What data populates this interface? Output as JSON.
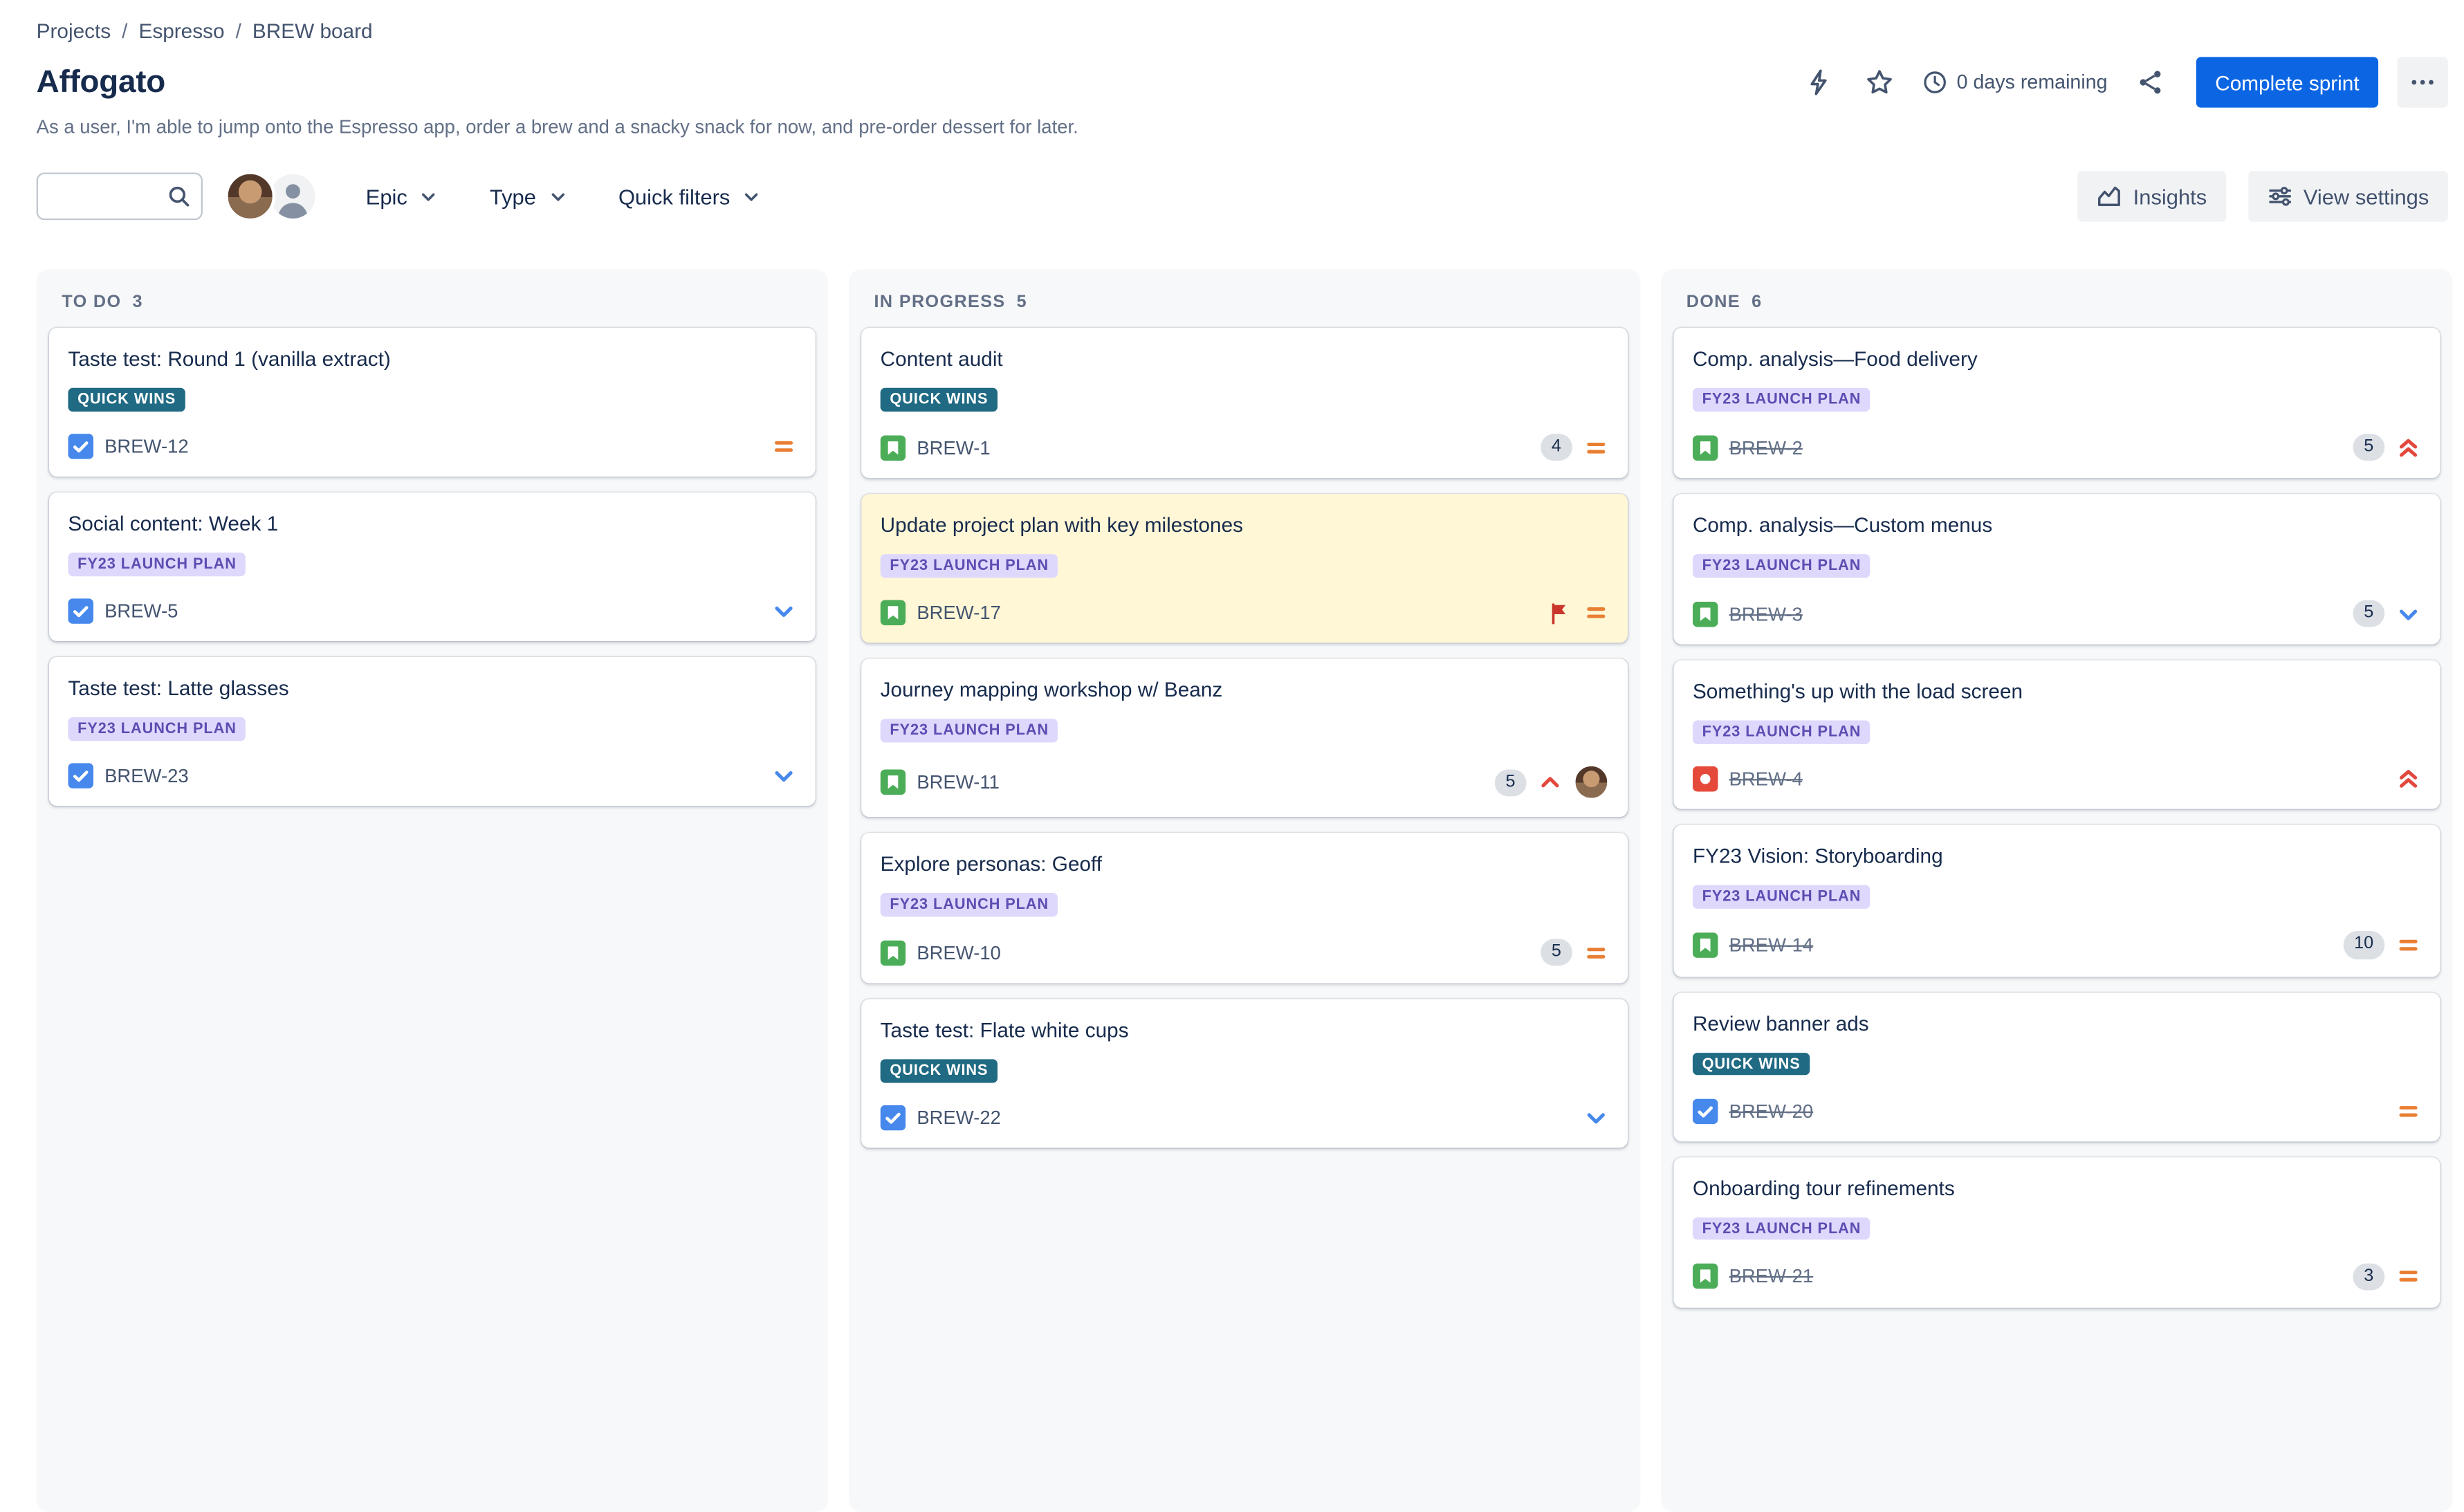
{
  "breadcrumb": {
    "items": [
      "Projects",
      "Espresso",
      "BREW board"
    ],
    "separator": "/"
  },
  "header": {
    "title": "Affogato",
    "description": "As a user, I'm able to jump onto the Espresso app, order a brew and a snacky snack for now, and pre-order dessert for later.",
    "days_remaining": "0 days remaining",
    "complete_sprint_label": "Complete sprint"
  },
  "toolbar": {
    "search": {
      "value": "",
      "placeholder": ""
    },
    "dropdowns": [
      {
        "label": "Epic"
      },
      {
        "label": "Type"
      },
      {
        "label": "Quick filters"
      }
    ],
    "buttons": {
      "insights": "Insights",
      "view_settings": "View settings"
    }
  },
  "board": {
    "columns": [
      {
        "name": "TO DO",
        "count": 3,
        "cards": [
          {
            "title": "Taste test: Round 1 (vanilla extract)",
            "epic": "QUICK WINS",
            "epic_color": "teal",
            "type": "task",
            "key": "BREW-12",
            "estimate": null,
            "priority": "medium",
            "done": false,
            "flagged": false,
            "highlighted": false,
            "avatar": false
          },
          {
            "title": "Social content: Week 1",
            "epic": "FY23 LAUNCH PLAN",
            "epic_color": "purple",
            "type": "task",
            "key": "BREW-5",
            "estimate": null,
            "priority": "low",
            "done": false,
            "flagged": false,
            "highlighted": false,
            "avatar": false
          },
          {
            "title": "Taste test: Latte glasses",
            "epic": "FY23 LAUNCH PLAN",
            "epic_color": "purple",
            "type": "task",
            "key": "BREW-23",
            "estimate": null,
            "priority": "low",
            "done": false,
            "flagged": false,
            "highlighted": false,
            "avatar": false
          }
        ]
      },
      {
        "name": "IN PROGRESS",
        "count": 5,
        "cards": [
          {
            "title": "Content audit",
            "epic": "QUICK WINS",
            "epic_color": "teal",
            "type": "story",
            "key": "BREW-1",
            "estimate": 4,
            "priority": "medium",
            "done": false,
            "flagged": false,
            "highlighted": false,
            "avatar": false
          },
          {
            "title": "Update project plan with key milestones",
            "epic": "FY23 LAUNCH PLAN",
            "epic_color": "purple",
            "type": "story",
            "key": "BREW-17",
            "estimate": null,
            "priority": "medium",
            "done": false,
            "flagged": true,
            "highlighted": true,
            "avatar": false
          },
          {
            "title": "Journey mapping workshop w/ Beanz",
            "epic": "FY23 LAUNCH PLAN",
            "epic_color": "purple",
            "type": "story",
            "key": "BREW-11",
            "estimate": 5,
            "priority": "high",
            "done": false,
            "flagged": false,
            "highlighted": false,
            "avatar": true
          },
          {
            "title": "Explore personas: Geoff",
            "epic": "FY23 LAUNCH PLAN",
            "epic_color": "purple",
            "type": "story",
            "key": "BREW-10",
            "estimate": 5,
            "priority": "medium",
            "done": false,
            "flagged": false,
            "highlighted": false,
            "avatar": false
          },
          {
            "title": "Taste test: Flate white cups",
            "epic": "QUICK WINS",
            "epic_color": "teal",
            "type": "task",
            "key": "BREW-22",
            "estimate": null,
            "priority": "low",
            "done": false,
            "flagged": false,
            "highlighted": false,
            "avatar": false
          }
        ]
      },
      {
        "name": "DONE",
        "count": 6,
        "cards": [
          {
            "title": "Comp. analysis—Food delivery",
            "epic": "FY23 LAUNCH PLAN",
            "epic_color": "purple",
            "type": "story",
            "key": "BREW-2",
            "estimate": 5,
            "priority": "highest",
            "done": true,
            "flagged": false,
            "highlighted": false,
            "avatar": false
          },
          {
            "title": "Comp. analysis—Custom menus",
            "epic": "FY23 LAUNCH PLAN",
            "epic_color": "purple",
            "type": "story",
            "key": "BREW-3",
            "estimate": 5,
            "priority": "low",
            "done": true,
            "flagged": false,
            "highlighted": false,
            "avatar": false
          },
          {
            "title": "Something's up with the load screen",
            "epic": "FY23 LAUNCH PLAN",
            "epic_color": "purple",
            "type": "bug",
            "key": "BREW-4",
            "estimate": null,
            "priority": "highest",
            "done": true,
            "flagged": false,
            "highlighted": false,
            "avatar": false
          },
          {
            "title": "FY23 Vision: Storyboarding",
            "epic": "FY23 LAUNCH PLAN",
            "epic_color": "purple",
            "type": "story",
            "key": "BREW-14",
            "estimate": 10,
            "priority": "medium",
            "done": true,
            "flagged": false,
            "highlighted": false,
            "avatar": false
          },
          {
            "title": "Review banner ads",
            "epic": "QUICK WINS",
            "epic_color": "teal",
            "type": "task",
            "key": "BREW-20",
            "estimate": null,
            "priority": "medium",
            "done": true,
            "flagged": false,
            "highlighted": false,
            "avatar": false
          },
          {
            "title": "Onboarding tour refinements",
            "epic": "FY23 LAUNCH PLAN",
            "epic_color": "purple",
            "type": "story",
            "key": "BREW-21",
            "estimate": 3,
            "priority": "medium",
            "done": true,
            "flagged": false,
            "highlighted": false,
            "avatar": false
          }
        ]
      }
    ]
  },
  "colors": {
    "accent_blue": "#0C66E4",
    "epic_teal_bg": "#206A83",
    "epic_purple_bg": "#DFD8FD",
    "epic_purple_text": "#5E4DB2",
    "highlight_yellow": "#FFF7D6",
    "priority_medium": "#E97F33",
    "priority_low": "#4688EC",
    "priority_high": "#E2483D",
    "type_task": "#4688EC",
    "type_story": "#4BAD57",
    "type_bug": "#E5493A",
    "flag_red": "#C9372C"
  }
}
